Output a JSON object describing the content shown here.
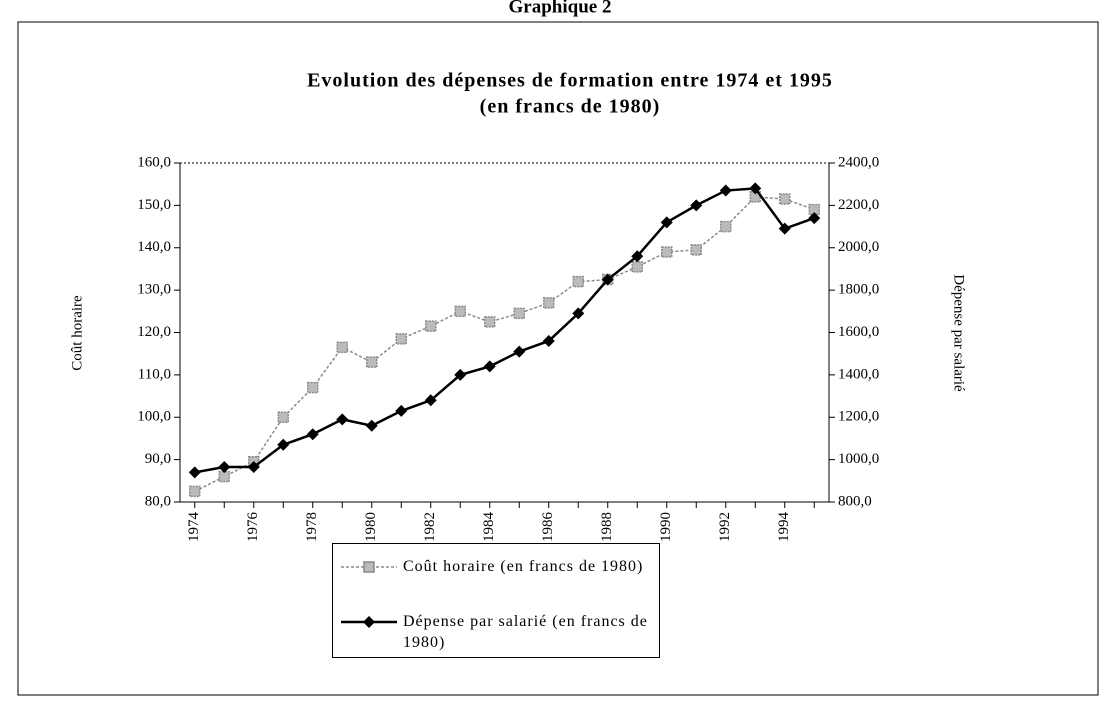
{
  "header": "Graphique 2",
  "chart_data": {
    "type": "line",
    "title": "Evolution des dépenses de formation entre 1974 et 1995",
    "subtitle": "(en francs de 1980)",
    "y_label": "Coût horaire",
    "y2_label": "Dépense par salarié",
    "categories": [
      "1974",
      null,
      "1976",
      null,
      "1978",
      null,
      "1980",
      null,
      "1982",
      null,
      "1984",
      null,
      "1986",
      null,
      "1988",
      null,
      "1990",
      null,
      "1992",
      null,
      "1994",
      null
    ],
    "series": [
      {
        "name": "Coût horaire (en francs de 1980)",
        "color": "#8a8a8a",
        "marker": "square",
        "dashed": true,
        "values": [
          82.5,
          86,
          89.5,
          100,
          107,
          116.5,
          113,
          118.5,
          121.5,
          125,
          122.5,
          124.5,
          127,
          132,
          132.5,
          135.5,
          139,
          139.5,
          145,
          152,
          151.5,
          149
        ]
      },
      {
        "name": "Dépense par salarié (en francs de 1980)",
        "color": "#000000",
        "marker": "diamond",
        "axis": "y2",
        "values": [
          940,
          965,
          965,
          1070,
          1120,
          1190,
          1160,
          1230,
          1280,
          1400,
          1440,
          1510,
          1560,
          1690,
          1850,
          1960,
          2120,
          2200,
          2270,
          2280,
          2090,
          2140
        ]
      }
    ],
    "ylim": [
      80,
      160
    ],
    "yticks": [
      {
        "value": 80,
        "label": "80,0"
      },
      {
        "value": 90,
        "label": "90,0"
      },
      {
        "value": 100,
        "label": "100,0"
      },
      {
        "value": 110,
        "label": "110,0"
      },
      {
        "value": 120,
        "label": "120,0"
      },
      {
        "value": 130,
        "label": "130,0"
      },
      {
        "value": 140,
        "label": "140,0"
      },
      {
        "value": 150,
        "label": "150,0"
      },
      {
        "value": 160,
        "label": "160,0"
      }
    ],
    "y2lim": [
      800,
      2400
    ],
    "y2ticks": [
      {
        "value": 800,
        "label": "800,0"
      },
      {
        "value": 1000,
        "label": "1000,0"
      },
      {
        "value": 1200,
        "label": "1200,0"
      },
      {
        "value": 1400,
        "label": "1400,0"
      },
      {
        "value": 1600,
        "label": "1600,0"
      },
      {
        "value": 1800,
        "label": "1800,0"
      },
      {
        "value": 2000,
        "label": "2000,0"
      },
      {
        "value": 2200,
        "label": "2200,0"
      },
      {
        "value": 2400,
        "label": "2400,0"
      }
    ],
    "legend": "bottom"
  }
}
